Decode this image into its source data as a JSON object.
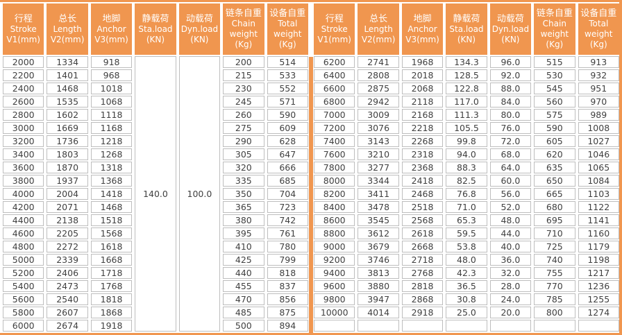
{
  "colors": {
    "accent_orange": "#F0964F",
    "grid_gray": "#BDBDBD",
    "text_dark": "#3F3F3F",
    "header_text": "#FFFFFF"
  },
  "columns": [
    {
      "lines": [
        "行程",
        "Stroke",
        "V1(mm)"
      ]
    },
    {
      "lines": [
        "总长",
        "Length",
        "V2(mm)"
      ]
    },
    {
      "lines": [
        "地脚",
        "Anchor",
        "V3(mm)"
      ]
    },
    {
      "lines": [
        "静载荷",
        "Sta.load",
        "(KN)"
      ]
    },
    {
      "lines": [
        "动载荷",
        "Dyn.load",
        "(KN)"
      ]
    },
    {
      "lines": [
        "链条自重",
        "Chain",
        "weight",
        "(Kg)"
      ]
    },
    {
      "lines": [
        "设备自重",
        "Total",
        "weight",
        "(Kg)"
      ]
    }
  ],
  "left_group": {
    "sta_load_merged": "140.0",
    "dyn_load_merged": "100.0",
    "rows": [
      [
        "2000",
        "1334",
        "918",
        "200",
        "514"
      ],
      [
        "2200",
        "1401",
        "968",
        "215",
        "533"
      ],
      [
        "2400",
        "1468",
        "1018",
        "230",
        "552"
      ],
      [
        "2600",
        "1535",
        "1068",
        "245",
        "571"
      ],
      [
        "2800",
        "1602",
        "1118",
        "260",
        "590"
      ],
      [
        "3000",
        "1669",
        "1168",
        "275",
        "609"
      ],
      [
        "3200",
        "1736",
        "1218",
        "290",
        "628"
      ],
      [
        "3400",
        "1803",
        "1268",
        "305",
        "647"
      ],
      [
        "3600",
        "1870",
        "1318",
        "320",
        "666"
      ],
      [
        "3800",
        "1937",
        "1368",
        "335",
        "685"
      ],
      [
        "4000",
        "2004",
        "1418",
        "350",
        "704"
      ],
      [
        "4200",
        "2071",
        "1468",
        "365",
        "723"
      ],
      [
        "4400",
        "2138",
        "1518",
        "380",
        "742"
      ],
      [
        "4600",
        "2205",
        "1568",
        "395",
        "761"
      ],
      [
        "4800",
        "2272",
        "1618",
        "410",
        "780"
      ],
      [
        "5000",
        "2339",
        "1668",
        "425",
        "799"
      ],
      [
        "5200",
        "2406",
        "1718",
        "440",
        "818"
      ],
      [
        "5400",
        "2473",
        "1768",
        "455",
        "837"
      ],
      [
        "5600",
        "2540",
        "1818",
        "470",
        "856"
      ],
      [
        "5800",
        "2607",
        "1868",
        "485",
        "875"
      ],
      [
        "6000",
        "2674",
        "1918",
        "500",
        "894"
      ]
    ]
  },
  "right_group": {
    "rows": [
      [
        "6200",
        "2741",
        "1968",
        "134.3",
        "96.0",
        "515",
        "913"
      ],
      [
        "6400",
        "2808",
        "2018",
        "128.5",
        "92.0",
        "530",
        "932"
      ],
      [
        "6600",
        "2875",
        "2068",
        "122.8",
        "88.0",
        "545",
        "951"
      ],
      [
        "6800",
        "2942",
        "2118",
        "117.0",
        "84.0",
        "560",
        "970"
      ],
      [
        "7000",
        "3009",
        "2168",
        "111.3",
        "80.0",
        "575",
        "989"
      ],
      [
        "7200",
        "3076",
        "2218",
        "105.5",
        "76.0",
        "590",
        "1008"
      ],
      [
        "7400",
        "3143",
        "2268",
        "99.8",
        "72.0",
        "605",
        "1027"
      ],
      [
        "7600",
        "3210",
        "2318",
        "94.0",
        "68.0",
        "620",
        "1046"
      ],
      [
        "7800",
        "3277",
        "2368",
        "88.3",
        "64.0",
        "635",
        "1065"
      ],
      [
        "8000",
        "3344",
        "2418",
        "82.5",
        "60.0",
        "650",
        "1084"
      ],
      [
        "8200",
        "3411",
        "2468",
        "76.8",
        "56.0",
        "665",
        "1103"
      ],
      [
        "8400",
        "3478",
        "2518",
        "71.0",
        "52.0",
        "680",
        "1122"
      ],
      [
        "8600",
        "3545",
        "2568",
        "65.3",
        "48.0",
        "695",
        "1141"
      ],
      [
        "8800",
        "3612",
        "2618",
        "59.5",
        "44.0",
        "710",
        "1160"
      ],
      [
        "9000",
        "3679",
        "2668",
        "53.8",
        "40.0",
        "725",
        "1179"
      ],
      [
        "9200",
        "3746",
        "2718",
        "48.0",
        "36.0",
        "740",
        "1198"
      ],
      [
        "9400",
        "3813",
        "2768",
        "42.3",
        "32.0",
        "755",
        "1217"
      ],
      [
        "9600",
        "3880",
        "2818",
        "36.5",
        "28.0",
        "770",
        "1236"
      ],
      [
        "9800",
        "3947",
        "2868",
        "30.8",
        "24.0",
        "785",
        "1255"
      ],
      [
        "10000",
        "4014",
        "2918",
        "25.0",
        "20.0",
        "800",
        "1274"
      ],
      [
        "",
        "",
        "",
        "",
        "",
        "",
        ""
      ]
    ]
  }
}
